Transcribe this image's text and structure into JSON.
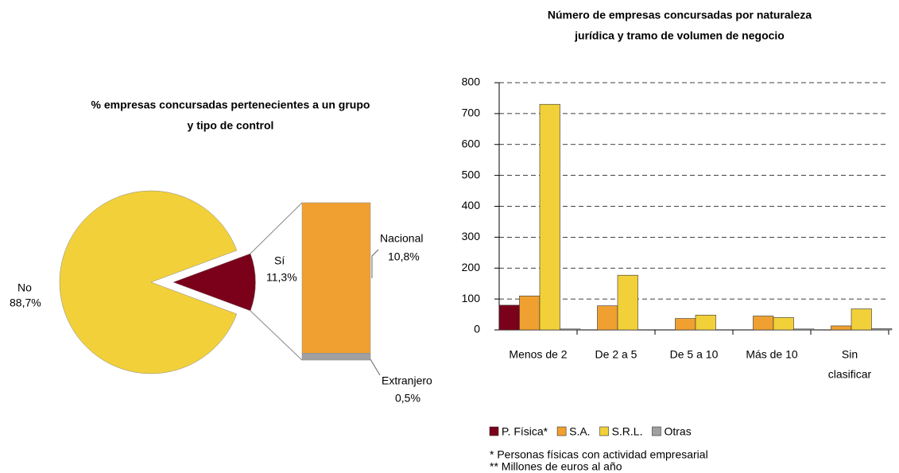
{
  "chart_data": [
    {
      "type": "pie",
      "title": [
        "% empresas concursadas  pertenecientes a un grupo",
        "y tipo de control"
      ],
      "categories": [
        "No",
        "Sí"
      ],
      "values": [
        88.7,
        11.3
      ],
      "value_labels": [
        "88,7%",
        "11,3%"
      ],
      "colors": [
        "#f2d03a",
        "#7b0019"
      ],
      "breakdown": {
        "categories": [
          "Nacional",
          "Extranjero"
        ],
        "values": [
          10.8,
          0.5
        ],
        "value_labels": [
          "10,8%",
          "0,5%"
        ],
        "colors": [
          "#f0a030",
          "#a0a0a0"
        ]
      }
    },
    {
      "type": "bar",
      "title": [
        "Número de empresas concursadas por naturaleza",
        "jurídica y tramo de volumen de negocio"
      ],
      "categories": [
        [
          "Menos de 2"
        ],
        [
          "De 2 a 5"
        ],
        [
          "De 5 a 10"
        ],
        [
          "Más de 10"
        ],
        [
          "Sin",
          "clasificar"
        ]
      ],
      "series": [
        {
          "name": "P. Física*",
          "color": "#7b0019",
          "values": [
            80,
            0,
            0,
            0,
            0
          ]
        },
        {
          "name": "S.A.",
          "color": "#f0a030",
          "values": [
            110,
            78,
            37,
            45,
            13
          ]
        },
        {
          "name": "S.R.L.",
          "color": "#f2d03a",
          "values": [
            730,
            177,
            48,
            40,
            68
          ]
        },
        {
          "name": "Otras",
          "color": "#a0a0a0",
          "values": [
            3,
            0,
            0,
            3,
            4
          ]
        }
      ],
      "ylim": [
        0,
        800
      ],
      "yticks": [
        0,
        100,
        200,
        300,
        400,
        500,
        600,
        700,
        800
      ],
      "grid": true,
      "notes": [
        "* Personas físicas con actividad empresarial",
        "** Millones de euros al año"
      ]
    }
  ]
}
